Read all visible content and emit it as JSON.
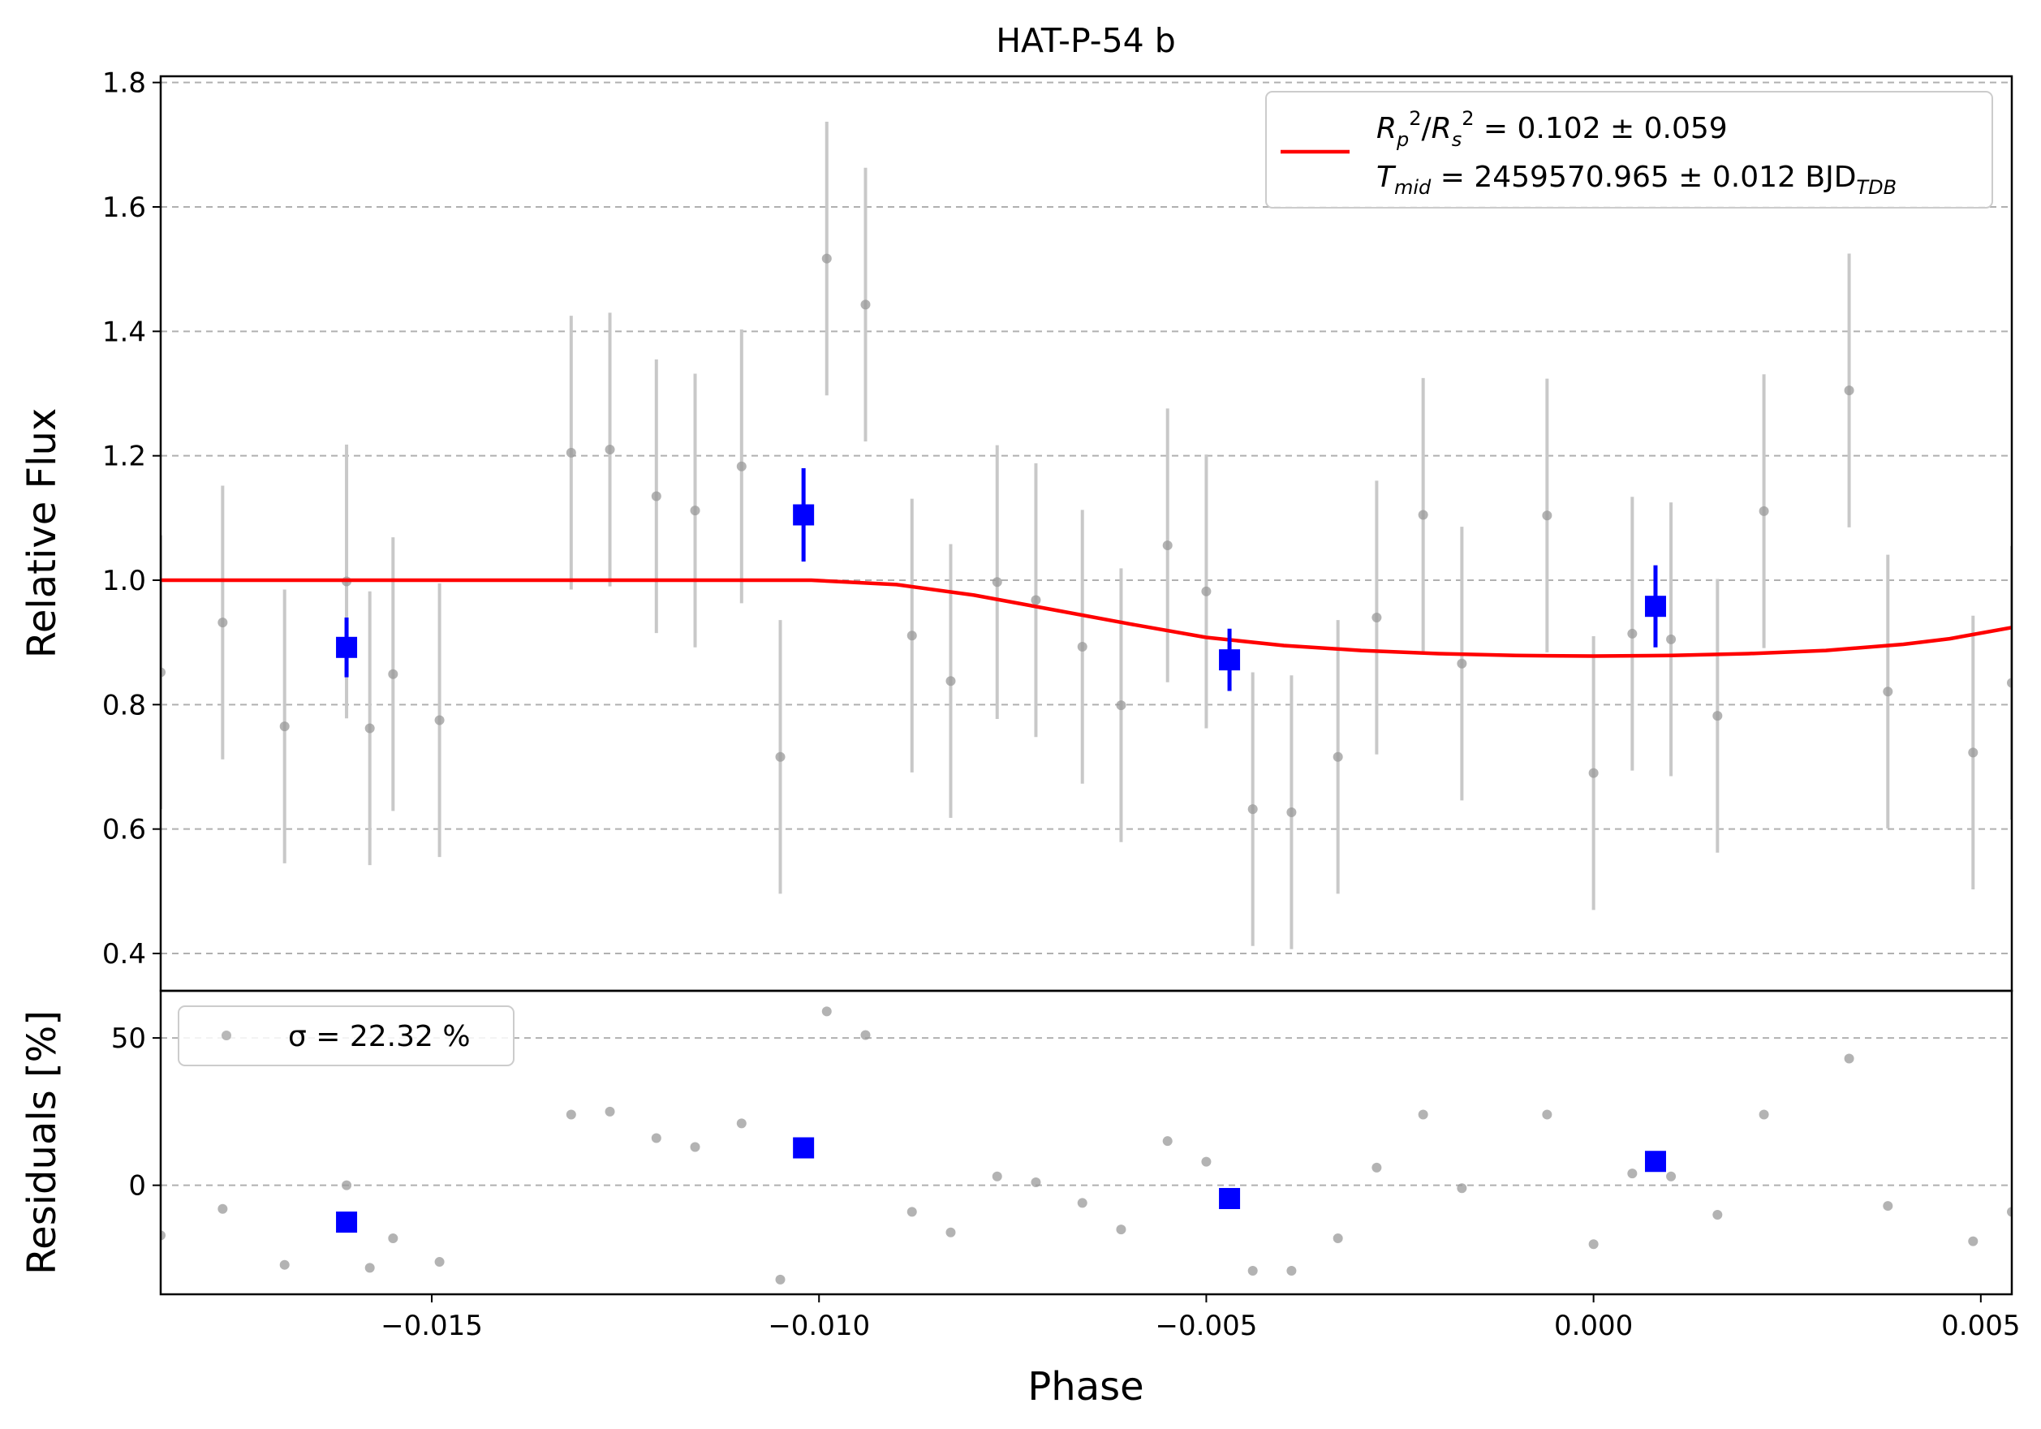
{
  "figure": {
    "title": "HAT-P-54 b",
    "xlabel": "Phase",
    "top_ylabel": "Relative Flux",
    "bottom_ylabel": "Residuals [%]"
  },
  "legend_top": {
    "model_line_1": "R_p^2/R_s^2 = 0.102 ± 0.059",
    "model_line_2": "T_mid = 2459570.965 ± 0.012 BJD_TDB",
    "placement": "upper right"
  },
  "legend_bottom": {
    "text": "σ = 22.32 %",
    "placement": "upper left"
  },
  "colors": {
    "raw_points": "#9a9a9a",
    "raw_errorbars": "#c8c8c8",
    "binned": "#0000ff",
    "model": "#ff0000",
    "grid": "#b0b0b0"
  },
  "chart_data": [
    {
      "type": "scatter",
      "panel": "light curve",
      "xlim": [
        -0.0185,
        0.0054
      ],
      "ylim": [
        0.34,
        1.81
      ],
      "yticks": [
        0.4,
        0.6,
        0.8,
        1.0,
        1.2,
        1.4,
        1.6,
        1.8
      ],
      "ytick_labels": [
        "0.4",
        "0.6",
        "0.8",
        "1.0",
        "1.2",
        "1.4",
        "1.6",
        "1.8"
      ],
      "grid": "horizontal dashed",
      "series": [
        {
          "kind": "raw",
          "x": [
            -0.0185,
            -0.0177,
            -0.0169,
            -0.0161,
            -0.0158,
            -0.0155,
            -0.0149,
            -0.0132,
            -0.0127,
            -0.0121,
            -0.0116,
            -0.011,
            -0.0105,
            -0.0099,
            -0.0094,
            -0.0088,
            -0.0083,
            -0.0077,
            -0.0072,
            -0.0066,
            -0.0061,
            -0.0055,
            -0.005,
            -0.0044,
            -0.0039,
            -0.0033,
            -0.0028,
            -0.0022,
            -0.0017,
            -0.0006,
            0.0,
            0.0005,
            0.001,
            0.0016,
            0.0022,
            0.0033,
            0.0038,
            0.0049,
            0.0054
          ],
          "y": [
            0.852,
            0.932,
            0.765,
            0.998,
            0.762,
            0.849,
            0.775,
            1.205,
            1.21,
            1.135,
            1.112,
            1.183,
            0.716,
            1.517,
            1.443,
            0.911,
            0.838,
            0.997,
            0.968,
            0.893,
            0.799,
            1.056,
            0.982,
            0.632,
            0.627,
            0.716,
            0.94,
            1.105,
            0.866,
            1.104,
            0.69,
            0.914,
            0.905,
            0.782,
            1.111,
            1.305,
            0.821,
            0.723,
            0.835
          ],
          "yerr": [
            0.22,
            0.22,
            0.22,
            0.22,
            0.22,
            0.22,
            0.22,
            0.22,
            0.22,
            0.22,
            0.22,
            0.22,
            0.22,
            0.22,
            0.22,
            0.22,
            0.22,
            0.22,
            0.22,
            0.22,
            0.22,
            0.22,
            0.22,
            0.22,
            0.22,
            0.22,
            0.22,
            0.22,
            0.22,
            0.22,
            0.22,
            0.22,
            0.22,
            0.22,
            0.22,
            0.22,
            0.22,
            0.22,
            0.22
          ]
        },
        {
          "kind": "binned",
          "x": [
            -0.0161,
            -0.0102,
            -0.0047,
            0.0008
          ],
          "y": [
            0.892,
            1.105,
            0.872,
            0.958
          ],
          "yerr": [
            0.048,
            0.075,
            0.05,
            0.066
          ]
        },
        {
          "kind": "model",
          "x": [
            -0.0185,
            -0.0101,
            -0.009,
            -0.008,
            -0.007,
            -0.006,
            -0.005,
            -0.004,
            -0.003,
            -0.002,
            -0.001,
            0.0,
            0.001,
            0.002,
            0.003,
            0.004,
            0.0046,
            0.0054
          ],
          "y": [
            1.0,
            1.0,
            0.993,
            0.976,
            0.953,
            0.93,
            0.908,
            0.895,
            0.887,
            0.882,
            0.879,
            0.878,
            0.879,
            0.882,
            0.887,
            0.897,
            0.906,
            0.924
          ]
        }
      ]
    },
    {
      "type": "scatter",
      "panel": "residuals",
      "xlim": [
        -0.0185,
        0.0054
      ],
      "ylim": [
        -37,
        66
      ],
      "yticks": [
        0,
        50
      ],
      "ytick_labels": [
        "0",
        "50"
      ],
      "xticks": [
        -0.015,
        -0.01,
        -0.005,
        0.0,
        0.005
      ],
      "xtick_labels": [
        "−0.015",
        "−0.010",
        "−0.005",
        "0.000",
        "0.005"
      ],
      "grid": "horizontal dashed",
      "series": [
        {
          "kind": "raw",
          "x": [
            -0.0185,
            -0.0177,
            -0.0169,
            -0.0161,
            -0.0158,
            -0.0155,
            -0.0149,
            -0.0132,
            -0.0127,
            -0.0121,
            -0.0116,
            -0.011,
            -0.0105,
            -0.0099,
            -0.0094,
            -0.0088,
            -0.0083,
            -0.0077,
            -0.0072,
            -0.0066,
            -0.0061,
            -0.0055,
            -0.005,
            -0.0044,
            -0.0039,
            -0.0033,
            -0.0028,
            -0.0022,
            -0.0017,
            -0.0006,
            0.0,
            0.0005,
            0.001,
            0.0016,
            0.0022,
            0.0033,
            0.0038,
            0.0049,
            0.0054
          ],
          "y": [
            -17,
            -8,
            -27,
            0,
            -28,
            -18,
            -26,
            24,
            25,
            16,
            13,
            21,
            -32,
            59,
            51,
            -9,
            -16,
            3,
            1,
            -6,
            -15,
            15,
            8,
            -29,
            -29,
            -18,
            6,
            24,
            -1,
            24,
            -20,
            4,
            3,
            -10,
            24,
            43,
            -7,
            -19,
            -9
          ]
        },
        {
          "kind": "binned",
          "x": [
            -0.0161,
            -0.0102,
            -0.0047,
            0.0008
          ],
          "y": [
            -12.5,
            12.7,
            -4.5,
            8.1
          ]
        }
      ]
    }
  ]
}
